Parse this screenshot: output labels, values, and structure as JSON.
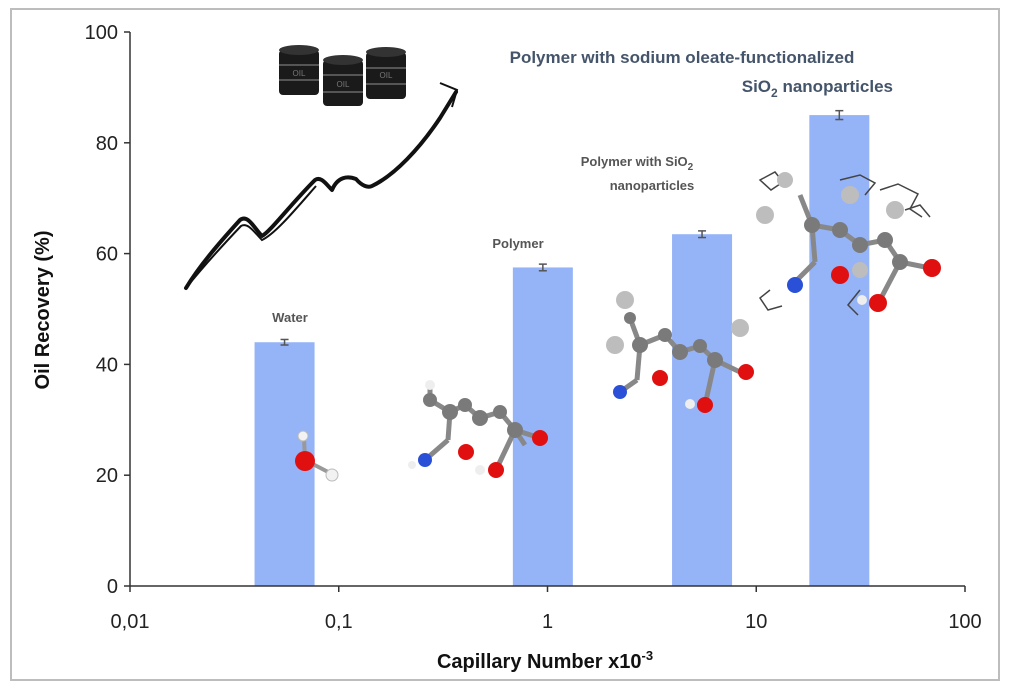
{
  "chart_data": {
    "type": "bar",
    "xscale": "log",
    "x_range": [
      0.01,
      100
    ],
    "ylim": [
      0,
      100
    ],
    "xlabel": "Capillary Number x10",
    "xlabel_exponent": "-3",
    "ylabel": "Oil Recovery (%)",
    "x_tick_labels": [
      "0,01",
      "0,1",
      "1",
      "10",
      "100"
    ],
    "y_tick_labels": [
      "0",
      "20",
      "40",
      "60",
      "80",
      "100"
    ],
    "y_ticks": [
      0,
      20,
      40,
      60,
      80,
      100
    ],
    "x_ticks": [
      0.01,
      0.1,
      1,
      10,
      100
    ],
    "bars": [
      {
        "category": "Water",
        "x": 0.055,
        "value": 44,
        "error": 0.5
      },
      {
        "category": "Polymer",
        "x": 0.95,
        "value": 57.5,
        "error": 0.6
      },
      {
        "category": "Polymer with SiO2 nanoparticles",
        "x": 5.5,
        "value": 63.5,
        "error": 0.6
      },
      {
        "category": "Polymer with sodium oleate-functionalized SiO2 nanoparticles",
        "x": 25,
        "value": 85,
        "error": 0.8
      }
    ],
    "annotations": {
      "water": "Water",
      "polymer": "Polymer",
      "sio2_line1": "Polymer with SiO",
      "sio2_line1_sub": "2",
      "sio2_line2": "nanoparticles",
      "oleate_line1": "Polymer with sodium oleate-functionalized",
      "oleate_line2_a": "SiO",
      "oleate_line2_sub": "2",
      "oleate_line2_b": " nanoparticles"
    },
    "barrel_label": "OIL",
    "grid": false,
    "legend": "none",
    "bar_color": "#95b3f7",
    "error_bar_color": "#555555"
  }
}
